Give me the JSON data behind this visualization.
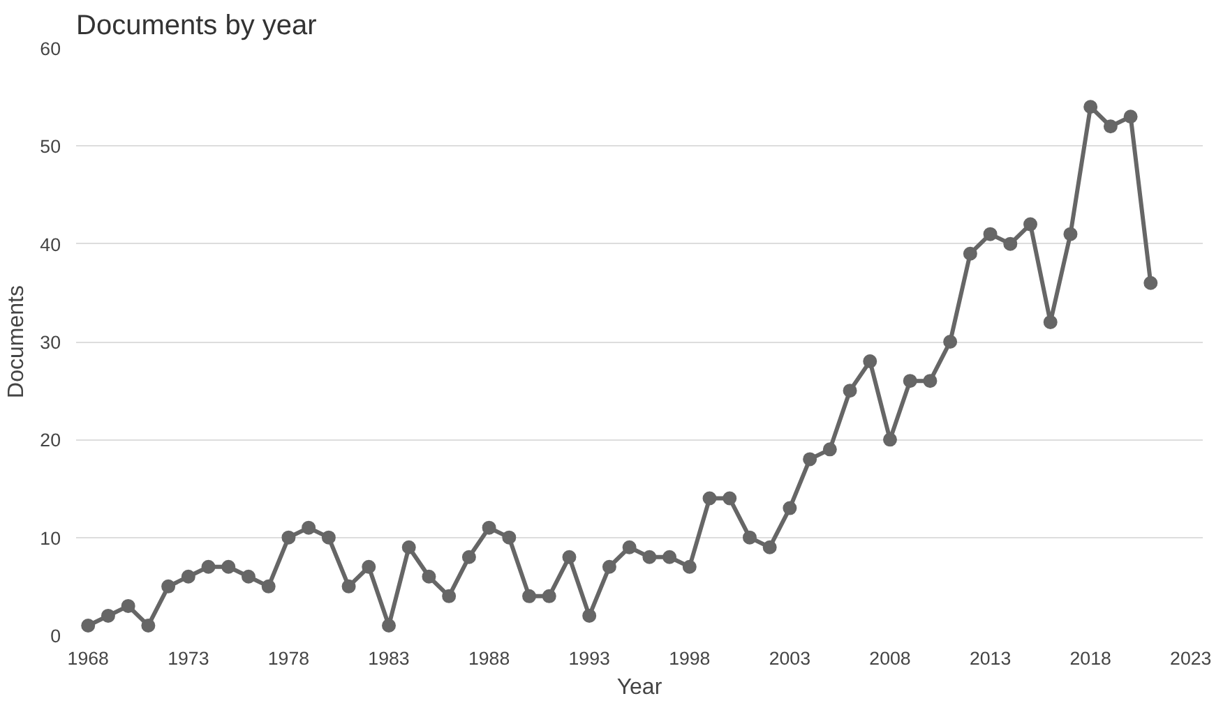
{
  "chart_data": {
    "type": "line",
    "title": "Documents by year",
    "xlabel": "Year",
    "ylabel": "Documents",
    "x": [
      1968,
      1969,
      1970,
      1971,
      1972,
      1973,
      1974,
      1975,
      1976,
      1977,
      1978,
      1979,
      1980,
      1981,
      1982,
      1983,
      1984,
      1985,
      1986,
      1987,
      1988,
      1989,
      1990,
      1991,
      1992,
      1993,
      1994,
      1995,
      1996,
      1997,
      1998,
      1999,
      2000,
      2001,
      2002,
      2003,
      2004,
      2005,
      2006,
      2007,
      2008,
      2009,
      2010,
      2011,
      2012,
      2013,
      2014,
      2015,
      2016,
      2017,
      2018,
      2019,
      2020,
      2021
    ],
    "series": [
      {
        "color": "#666666",
        "values": [
          1,
          2,
          3,
          1,
          5,
          6,
          7,
          7,
          6,
          5,
          10,
          11,
          10,
          5,
          7,
          1,
          9,
          6,
          4,
          8,
          11,
          10,
          4,
          4,
          8,
          2,
          7,
          9,
          8,
          8,
          7,
          14,
          14,
          10,
          9,
          13,
          18,
          19,
          25,
          28,
          20,
          26,
          26,
          30,
          39,
          41,
          40,
          42,
          32,
          41,
          54,
          52,
          53,
          36
        ]
      }
    ],
    "xlim": [
      1967.4,
      2023.6
    ],
    "xticks": [
      1968,
      1973,
      1978,
      1983,
      1988,
      1993,
      1998,
      2003,
      2008,
      2013,
      2018,
      2023
    ],
    "ylim": [
      0,
      60
    ],
    "yticks": [
      0,
      10,
      20,
      30,
      40,
      50,
      60
    ],
    "grid": "y",
    "marker": "circle",
    "line_style": "solid"
  }
}
